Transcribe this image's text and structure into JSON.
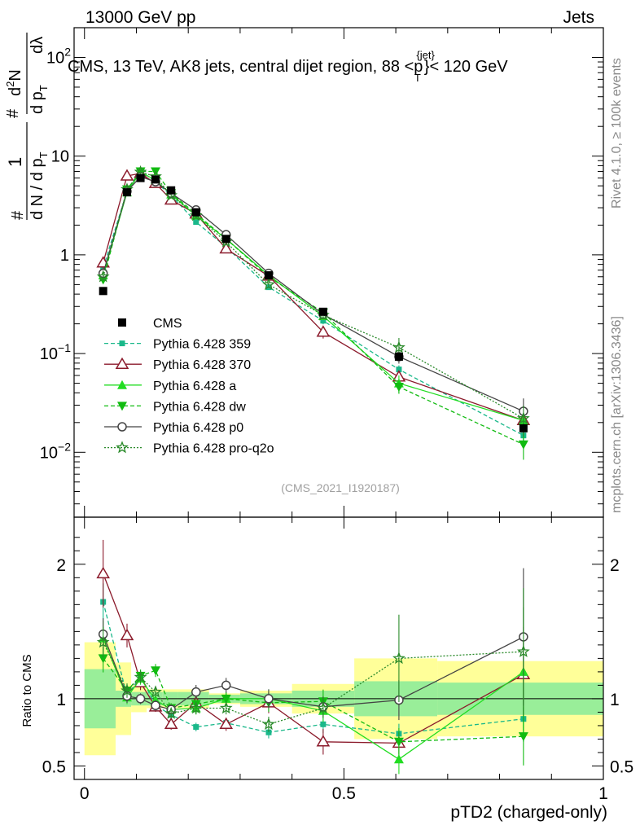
{
  "header": {
    "left": "13000 GeV pp",
    "right": "Jets"
  },
  "side_labels": {
    "rivet": "Rivet 4.1.0, ≥ 100k events",
    "mcplots": "mcplots.cern.ch [arXiv:1306.3436]"
  },
  "watermark": "(CMS_2021_I1920187)",
  "chart_data": {
    "type": "line",
    "title": "CMS, 13 TeV, AK8 jets, central dijet region, 88 <p_T^{jet}< 120 GeV",
    "title_parts": {
      "main": "CMS, 13 TeV, AK8 jets, central dijet region, 88 <p",
      "sup": "{jet}",
      "sub": "T",
      "tail": "}< 120 GeV"
    },
    "xlabel": "pTD2 (charged-only)",
    "ylabel": "1/(dN/dpT) d²N/(dpT dλ)",
    "ylabel_parts": {
      "hash1": "#",
      "one": "1",
      "den": "d N / d p",
      "sub": "T",
      "hash2": "#",
      "d2n": "d",
      "sq": "2",
      "nn": "N",
      "dp": "d p",
      "dl": "dλ"
    },
    "ratio_ylabel": "Ratio to CMS",
    "xlim": [
      -0.02,
      1.0
    ],
    "ylim": [
      0.0022,
      200
    ],
    "ratio_ylim": [
      0.4,
      2.35
    ],
    "yscale": "log",
    "x_ticks": [
      {
        "v": 0,
        "label": "0"
      },
      {
        "v": 0.5,
        "label": "0.5"
      },
      {
        "v": 1,
        "label": "1"
      }
    ],
    "y_ticks": [
      {
        "v": 100,
        "base": "10",
        "exp": "2"
      },
      {
        "v": 10,
        "base": "10",
        "exp": ""
      },
      {
        "v": 1,
        "base": "1",
        "exp": ""
      },
      {
        "v": 0.1,
        "base": "10",
        "exp": "−1"
      },
      {
        "v": 0.01,
        "base": "10",
        "exp": "−2"
      }
    ],
    "ratio_ticks": [
      {
        "v": 2,
        "label": "2"
      },
      {
        "v": 1,
        "label": "1"
      },
      {
        "v": 0.5,
        "label": "0.5"
      }
    ],
    "bin_edges": [
      0,
      0.06,
      0.09,
      0.12,
      0.15,
      0.18,
      0.24,
      0.3,
      0.4,
      0.52,
      0.68,
      1.0
    ],
    "x": [
      0.036,
      0.082,
      0.108,
      0.137,
      0.167,
      0.215,
      0.273,
      0.355,
      0.46,
      0.606,
      0.846
    ],
    "cms": {
      "name": "CMS",
      "values": [
        0.43,
        4.3,
        6.0,
        5.8,
        4.5,
        2.7,
        1.45,
        0.62,
        0.265,
        0.093,
        0.0175
      ],
      "band_inner": [
        0.22,
        0.06,
        0.05,
        0.05,
        0.05,
        0.05,
        0.03,
        0.04,
        0.06,
        0.13,
        0.12
      ],
      "band_outer": [
        0.42,
        0.27,
        0.1,
        0.07,
        0.07,
        0.07,
        0.04,
        0.06,
        0.11,
        0.3,
        0.28
      ]
    },
    "series": [
      {
        "name": "Pythia 6.428 359",
        "color": "#1ab88a",
        "dash": "5,3",
        "line": true,
        "marker": "square",
        "values": [
          0.74,
          4.4,
          7.1,
          5.5,
          4.0,
          2.15,
          1.2,
          0.47,
          0.215,
          0.069,
          0.0148
        ],
        "ratio": [
          1.72,
          1.02,
          1.17,
          0.95,
          0.88,
          0.79,
          0.82,
          0.75,
          0.81,
          0.74,
          0.85
        ],
        "err": [
          0.08,
          0.05,
          0.04,
          0.04,
          0.04,
          0.04,
          0.04,
          0.06,
          0.08,
          0.1,
          0.2
        ]
      },
      {
        "name": "Pythia 6.428 370",
        "color": "#8b1a2b",
        "dash": "",
        "line": true,
        "marker": "triangle-open",
        "values": [
          0.83,
          6.3,
          6.7,
          5.3,
          3.6,
          2.6,
          1.15,
          0.61,
          0.165,
          0.058,
          0.021
        ],
        "ratio": [
          1.93,
          1.47,
          1.12,
          0.94,
          0.81,
          0.97,
          0.81,
          0.97,
          0.68,
          0.67,
          1.18
        ],
        "err": [
          0.13,
          0.06,
          0.05,
          0.04,
          0.05,
          0.05,
          0.06,
          0.08,
          0.14,
          0.12,
          0.3
        ]
      },
      {
        "name": "Pythia 6.428 a",
        "color": "#22dd22",
        "dash": "",
        "line": true,
        "marker": "triangle",
        "values": [
          0.62,
          4.3,
          6.9,
          5.7,
          4.1,
          2.5,
          1.45,
          0.62,
          0.24,
          0.05,
          0.021
        ],
        "ratio": [
          1.45,
          1.01,
          1.15,
          0.99,
          0.92,
          0.93,
          1.0,
          1.0,
          0.91,
          0.55,
          1.2
        ],
        "err": [
          0.09,
          0.05,
          0.04,
          0.04,
          0.04,
          0.05,
          0.05,
          0.07,
          0.09,
          0.2,
          0.4
        ]
      },
      {
        "name": "Pythia 6.428 dw",
        "color": "#11bb11",
        "dash": "5,3",
        "line": true,
        "marker": "triangle-down",
        "values": [
          0.56,
          4.6,
          7.0,
          7.0,
          4.2,
          2.6,
          1.45,
          0.6,
          0.26,
          0.046,
          0.012
        ],
        "ratio": [
          1.3,
          1.06,
          1.17,
          1.21,
          0.93,
          0.96,
          1.0,
          0.97,
          0.98,
          0.68,
          0.72
        ],
        "err": [
          0.08,
          0.05,
          0.04,
          0.04,
          0.04,
          0.05,
          0.05,
          0.07,
          0.09,
          0.15,
          0.3
        ]
      },
      {
        "name": "Pythia 6.428 p0",
        "color": "#444444",
        "dash": "",
        "line": true,
        "marker": "circle-open",
        "values": [
          0.65,
          4.4,
          6.2,
          5.5,
          4.2,
          2.85,
          1.6,
          0.65,
          0.25,
          0.093,
          0.026
        ],
        "ratio": [
          1.48,
          1.02,
          1.0,
          0.95,
          0.92,
          1.05,
          1.1,
          1.0,
          0.94,
          0.99,
          1.46
        ],
        "err": [
          0.08,
          0.05,
          0.04,
          0.04,
          0.04,
          0.05,
          0.05,
          0.07,
          0.08,
          0.15,
          0.35
        ]
      },
      {
        "name": "Pythia 6.428 pro-q2o",
        "color": "#2a8a2a",
        "dash": "2,2",
        "line": true,
        "marker": "star-open",
        "values": [
          0.6,
          4.6,
          6.9,
          6.2,
          4.0,
          2.5,
          1.35,
          0.5,
          0.245,
          0.115,
          0.022
        ],
        "ratio": [
          1.42,
          1.06,
          1.16,
          1.05,
          0.89,
          0.93,
          0.93,
          0.81,
          0.93,
          1.3,
          1.35
        ],
        "err": [
          0.08,
          0.05,
          0.04,
          0.04,
          0.04,
          0.05,
          0.05,
          0.07,
          0.08,
          0.25,
          0.35
        ]
      }
    ],
    "cms_marker": {
      "color": "#000000",
      "marker": "square-filled"
    },
    "band_colors": {
      "inner": "#99ee99",
      "outer": "#ffff99"
    }
  }
}
